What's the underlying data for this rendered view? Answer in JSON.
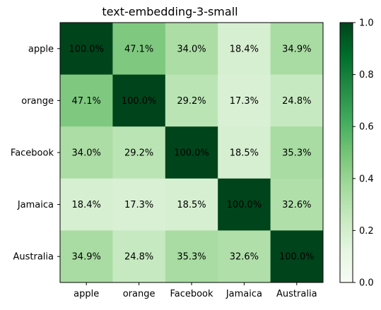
{
  "chart_data": {
    "type": "heatmap",
    "title": "text-embedding-3-small",
    "x_categories": [
      "apple",
      "orange",
      "Facebook",
      "Jamaica",
      "Australia"
    ],
    "y_categories": [
      "apple",
      "orange",
      "Facebook",
      "Jamaica",
      "Australia"
    ],
    "values": [
      [
        1.0,
        0.471,
        0.34,
        0.184,
        0.349
      ],
      [
        0.471,
        1.0,
        0.292,
        0.173,
        0.248
      ],
      [
        0.34,
        0.292,
        1.0,
        0.185,
        0.353
      ],
      [
        0.184,
        0.173,
        0.185,
        1.0,
        0.326
      ],
      [
        0.349,
        0.248,
        0.353,
        0.326,
        1.0
      ]
    ],
    "cell_labels": [
      [
        "100.0%",
        "47.1%",
        "34.0%",
        "18.4%",
        "34.9%"
      ],
      [
        "47.1%",
        "100.0%",
        "29.2%",
        "17.3%",
        "24.8%"
      ],
      [
        "34.0%",
        "29.2%",
        "100.0%",
        "18.5%",
        "35.3%"
      ],
      [
        "18.4%",
        "17.3%",
        "18.5%",
        "100.0%",
        "32.6%"
      ],
      [
        "34.9%",
        "24.8%",
        "35.3%",
        "32.6%",
        "100.0%"
      ]
    ],
    "colormap": "Greens",
    "colorbar": {
      "range": [
        0,
        1
      ],
      "ticks": [
        "0.0",
        "0.2",
        "0.4",
        "0.6",
        "0.8",
        "1.0"
      ]
    },
    "legend": "none",
    "grid": false
  }
}
